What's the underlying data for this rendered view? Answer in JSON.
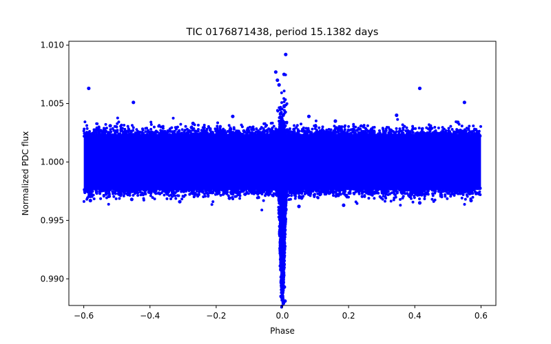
{
  "chart_data": {
    "type": "scatter",
    "title": "TIC 0176871438, period 15.1382 days",
    "xlabel": "Phase",
    "ylabel": "Normalized PDC flux",
    "xlim": [
      -0.645,
      0.645
    ],
    "ylim": [
      0.98772,
      1.01033
    ],
    "xticks": [
      -0.6,
      -0.4,
      -0.2,
      0.0,
      0.2,
      0.4,
      0.6
    ],
    "xtick_labels": [
      "−0.6",
      "−0.4",
      "−0.2",
      "0.0",
      "0.2",
      "0.4",
      "0.6"
    ],
    "yticks": [
      0.99,
      0.995,
      1.0,
      1.005,
      1.01
    ],
    "ytick_labels": [
      "0.990",
      "0.995",
      "1.000",
      "1.005",
      "1.010"
    ],
    "grid": false,
    "marker_color": "#0000ff",
    "band": {
      "x_range": [
        -0.6,
        0.6
      ],
      "median": 1.0,
      "core_range": [
        0.9976,
        1.0024
      ]
    },
    "transit": {
      "center_phase": 0.0,
      "min_flux": 0.9879,
      "width_phase": 0.02
    },
    "points": [
      [
        -0.585,
        1.0063
      ],
      [
        -0.45,
        1.0051
      ],
      [
        0.415,
        1.0063
      ],
      [
        0.55,
        1.0051
      ],
      [
        -0.15,
        1.0039
      ],
      [
        0.08,
        1.0039
      ],
      [
        0.345,
        1.004
      ],
      [
        0.01,
        1.0092
      ],
      [
        -0.02,
        1.0077
      ],
      [
        0.005,
        1.0075
      ],
      [
        -0.01,
        1.0066
      ],
      [
        -0.015,
        1.007
      ],
      [
        -0.58,
        0.9967
      ],
      [
        -0.455,
        0.9968
      ],
      [
        -0.31,
        0.9966
      ],
      [
        -0.16,
        0.9969
      ],
      [
        0.05,
        0.9962
      ],
      [
        0.185,
        0.9963
      ],
      [
        0.415,
        0.9965
      ],
      [
        0.57,
        0.9967
      ],
      [
        -0.27,
        1.0033
      ],
      [
        0.16,
        1.0035
      ],
      [
        0.53,
        1.0034
      ],
      [
        -0.52,
        1.0031
      ],
      [
        0.008,
        0.9881
      ],
      [
        0.003,
        0.9879
      ],
      [
        -0.004,
        0.9885
      ],
      [
        0.006,
        0.9893
      ]
    ]
  }
}
